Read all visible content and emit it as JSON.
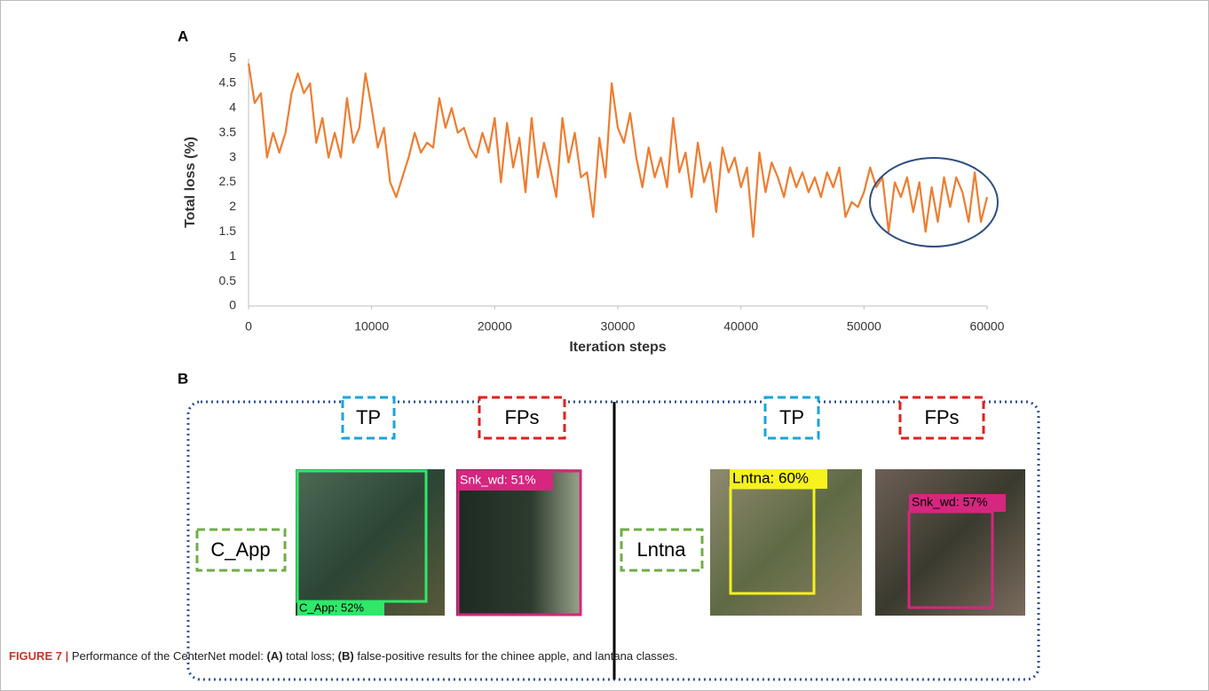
{
  "panel_labels": [
    "A",
    "B"
  ],
  "chart_data": {
    "type": "line",
    "xlabel": "Iteration steps",
    "ylabel": "Total loss (%)",
    "x": [
      0,
      500,
      1000,
      1500,
      2000,
      2500,
      3000,
      3500,
      4000,
      4500,
      5000,
      5500,
      6000,
      6500,
      7000,
      7500,
      8000,
      8500,
      9000,
      9500,
      10000,
      10500,
      11000,
      11500,
      12000,
      12500,
      13000,
      13500,
      14000,
      14500,
      15000,
      15500,
      16000,
      16500,
      17000,
      17500,
      18000,
      18500,
      19000,
      19500,
      20000,
      20500,
      21000,
      21500,
      22000,
      22500,
      23000,
      23500,
      24000,
      24500,
      25000,
      25500,
      26000,
      26500,
      27000,
      27500,
      28000,
      28500,
      29000,
      29500,
      30000,
      30500,
      31000,
      31500,
      32000,
      32500,
      33000,
      33500,
      34000,
      34500,
      35000,
      35500,
      36000,
      36500,
      37000,
      37500,
      38000,
      38500,
      39000,
      39500,
      40000,
      40500,
      41000,
      41500,
      42000,
      42500,
      43000,
      43500,
      44000,
      44500,
      45000,
      45500,
      46000,
      46500,
      47000,
      47500,
      48000,
      48500,
      49000,
      49500,
      50000,
      50500,
      51000,
      51500,
      52000,
      52500,
      53000,
      53500,
      54000,
      54500,
      55000,
      55500,
      56000,
      56500,
      57000,
      57500,
      58000,
      58500,
      59000,
      59500,
      60000
    ],
    "values": [
      4.9,
      4.1,
      4.3,
      3.0,
      3.5,
      3.1,
      3.5,
      4.3,
      4.7,
      4.3,
      4.5,
      3.3,
      3.8,
      3.0,
      3.5,
      3.0,
      4.2,
      3.3,
      3.6,
      4.7,
      4.0,
      3.2,
      3.6,
      2.5,
      2.2,
      2.6,
      3.0,
      3.5,
      3.1,
      3.3,
      3.2,
      4.2,
      3.6,
      4.0,
      3.5,
      3.6,
      3.2,
      3.0,
      3.5,
      3.1,
      3.8,
      2.5,
      3.7,
      2.8,
      3.4,
      2.3,
      3.8,
      2.6,
      3.3,
      2.8,
      2.2,
      3.8,
      2.9,
      3.5,
      2.6,
      2.7,
      1.8,
      3.4,
      2.6,
      4.5,
      3.6,
      3.3,
      3.9,
      3.0,
      2.4,
      3.2,
      2.6,
      3.0,
      2.4,
      3.8,
      2.7,
      3.1,
      2.2,
      3.3,
      2.5,
      2.9,
      1.9,
      3.2,
      2.7,
      3.0,
      2.4,
      2.8,
      1.4,
      3.1,
      2.3,
      2.9,
      2.6,
      2.2,
      2.8,
      2.4,
      2.7,
      2.3,
      2.6,
      2.2,
      2.7,
      2.4,
      2.8,
      1.8,
      2.1,
      2.0,
      2.3,
      2.8,
      2.4,
      2.6,
      1.5,
      2.5,
      2.2,
      2.6,
      1.9,
      2.5,
      1.5,
      2.4,
      1.7,
      2.6,
      2.0,
      2.6,
      2.3,
      1.7,
      2.7,
      1.7,
      2.2
    ],
    "color": "#ed7d31",
    "xlim": [
      0,
      60000
    ],
    "xticks": [
      0,
      10000,
      20000,
      30000,
      40000,
      50000,
      60000
    ],
    "ylim": [
      0,
      5
    ],
    "yticks": [
      0,
      0.5,
      1,
      1.5,
      2,
      2.5,
      3,
      3.5,
      4,
      4.5,
      5
    ],
    "grid": false
  },
  "panel_b": {
    "left": {
      "tp_label": "TP",
      "fp_label": "FPs",
      "class_label": "C_App",
      "tp_detection": "C_App: 52%",
      "fp_detection": "Snk_wd: 51%"
    },
    "right": {
      "tp_label": "TP",
      "fp_label": "FPs",
      "class_label": "Lntna",
      "tp_detection": "Lntna: 60%",
      "fp_detection": "Snk_wd: 57%"
    }
  },
  "caption": {
    "figure": "FIGURE 7 |",
    "parts": [
      " Performance of the CenterNet model: ",
      "(A)",
      " total loss; ",
      "(B)",
      " false-positive results for the chinee apple, and lantana classes."
    ]
  }
}
